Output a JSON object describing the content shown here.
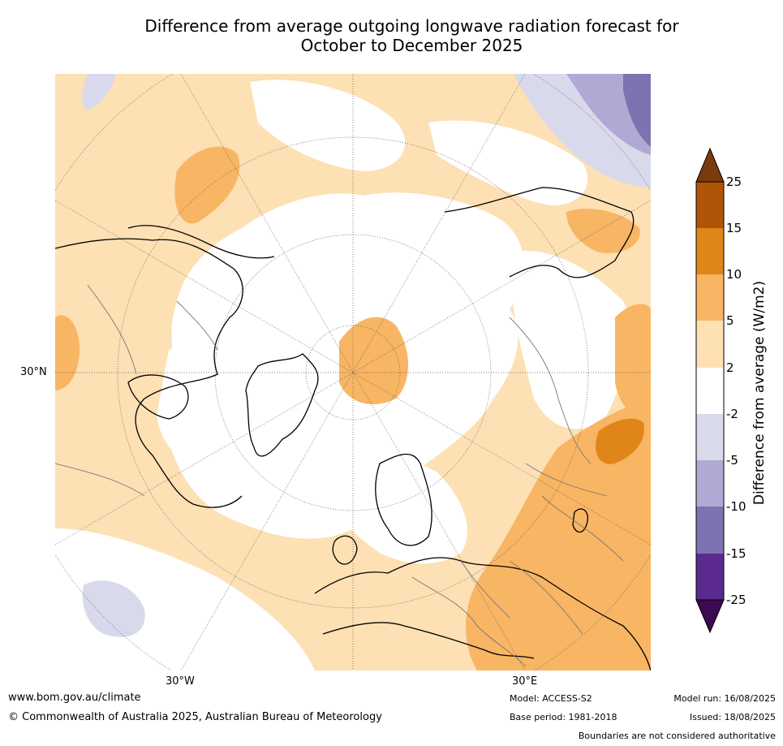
{
  "title": {
    "line1": "Difference from average outgoing longwave radiation forecast for",
    "line2": "October to December 2025"
  },
  "map": {
    "projection": "north polar stereographic",
    "lat_labels": {
      "lat30N": "30°N",
      "lon30W": "30°W",
      "lon30E": "30°E"
    }
  },
  "colorbar": {
    "title": "Difference from average (W/m2)",
    "ticks": [
      "25",
      "15",
      "10",
      "5",
      "2",
      "-2",
      "-5",
      "-10",
      "-15",
      "-25"
    ],
    "colors": {
      "gt25": "#7a3b0c",
      "15_25": "#b05408",
      "10_15": "#e08518",
      "5_10": "#f8b564",
      "2_5": "#fde0b4",
      "m2_2": "#ffffff",
      "m5_m2": "#d9d9ec",
      "m10_m5": "#b1a9d3",
      "m15_m10": "#7f72b0",
      "m25_m15": "#5a2a8e",
      "lt_m25": "#3b0a50"
    }
  },
  "footer": {
    "url": "www.bom.gov.au/climate",
    "copyright": "© Commonwealth of Australia 2025, Australian Bureau of Meteorology",
    "model": "Model: ACCESS-S2",
    "base_period": "Base period: 1981-2018",
    "model_run": "Model run: 16/08/2025",
    "issued": "Issued: 18/08/2025",
    "disclaimer": "Boundaries are not considered authoritative"
  }
}
